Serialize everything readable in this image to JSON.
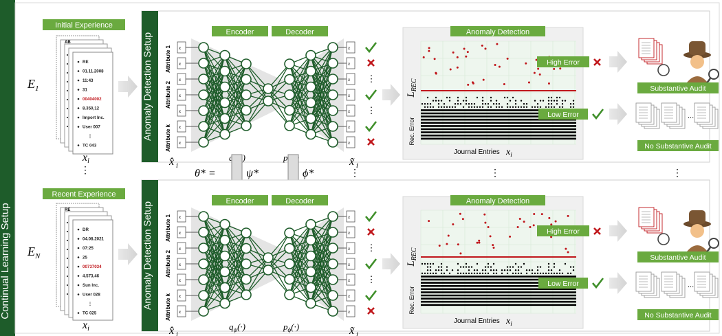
{
  "side_label": "Continual Learning Setup",
  "setup_label": "Anomaly Detection Setup",
  "panel1": {
    "experience_label": "Initial Experience",
    "experience_symbol": "E",
    "experience_sub": "1",
    "doc_back_text": "AB",
    "doc_lines": [
      "RE",
      "01.11.2008",
      "11:43",
      "31",
      "00404002",
      "8.350,12",
      "Import Inc.",
      "User 007",
      "⋮",
      "TC 043"
    ]
  },
  "panel2": {
    "experience_label": "Recent Experience",
    "experience_symbol": "E",
    "experience_sub": "N",
    "doc_back_text": "RE",
    "doc_lines": [
      "DR",
      "04.08.2021",
      "07:25",
      "25",
      "00737034",
      "4.573,46",
      "Sun Inc.",
      "User 028",
      "⋮",
      "TC 025"
    ]
  },
  "encoder_label": "Encoder",
  "decoder_label": "Decoder",
  "encoder_fn": "q",
  "encoder_fn_sub": "ψ",
  "decoder_fn": "p",
  "decoder_fn_sub": "ϕ",
  "fn_args": "(·)",
  "attribute_labels": [
    "Attribute 1",
    "Attribute 2",
    "Attribute k"
  ],
  "anomaly_title": "Anomaly Detection",
  "y_axis_label": "Rec. Error",
  "loss_symbol": "L",
  "loss_sub": "REC",
  "x_axis_label": "Journal Entries",
  "x_axis_symbol": "x",
  "x_axis_sub": "i",
  "high_error_label": "High Error",
  "low_error_label": "Low Error",
  "substantive_audit_label": "Substantive Audit",
  "no_substantive_audit_label": "No Substantive Audit",
  "theta_label": "θ* =",
  "psi_star": "ψ*",
  "phi_star": "ϕ*",
  "ellipsis_vertical": "⋮",
  "ellipsis_horizontal": "...",
  "colors": {
    "green_fill": "#6aaa3f",
    "dark_green": "#1e5c2a",
    "red": "#c0171c",
    "check_green": "#3f8f2a",
    "plot_bg": "#eef6ee"
  }
}
